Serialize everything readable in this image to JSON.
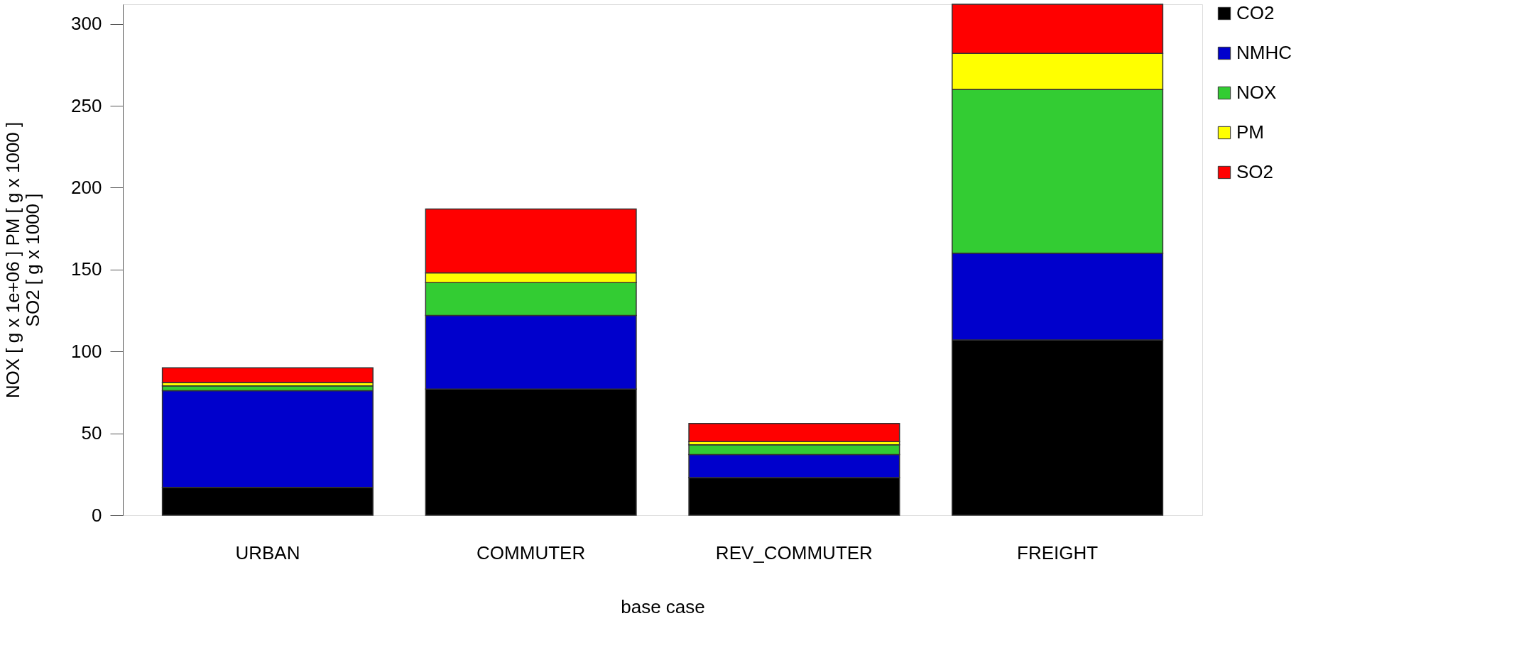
{
  "chart_data": {
    "type": "bar",
    "stacked": true,
    "xlabel": "base case",
    "ylabel": "NOX  [ g x  1e+06 ] PM  [ g x  1000 ]\nSO2  [ g x  1000 ]",
    "categories": [
      "URBAN",
      "COMMUTER",
      "REV_COMMUTER",
      "FREIGHT"
    ],
    "series": [
      {
        "name": "CO2",
        "color": "#000000",
        "values": [
          17,
          77,
          23,
          107
        ]
      },
      {
        "name": "NMHC",
        "color": "#0000cc",
        "values": [
          59,
          45,
          14,
          53
        ]
      },
      {
        "name": "NOX",
        "color": "#33cc33",
        "values": [
          3,
          20,
          6,
          100
        ]
      },
      {
        "name": "PM",
        "color": "#ffff00",
        "values": [
          2,
          6,
          2,
          22
        ]
      },
      {
        "name": "SO2",
        "color": "#ff0000",
        "values": [
          9,
          39,
          11,
          30
        ]
      }
    ],
    "ylim": [
      0,
      312
    ],
    "yticks": [
      0,
      50,
      100,
      150,
      200,
      250,
      300
    ],
    "grid": false,
    "legend": "right"
  }
}
